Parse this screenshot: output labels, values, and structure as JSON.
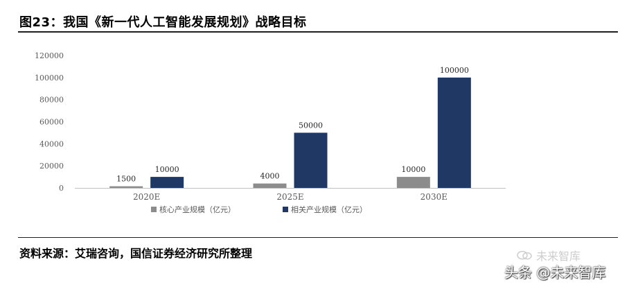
{
  "title": "图23：我国《新一代人工智能发展规划》战略目标",
  "source": "资料来源：艾瑞咨询，国信证券经济研究所整理",
  "watermark_top": "未来智库",
  "watermark_bottom": "头条 @未来智库",
  "colors": {
    "core": "#8c8c8c",
    "related": "#1f3864",
    "axis": "#bfbfbf",
    "text": "#595959"
  },
  "chart_data": {
    "type": "bar",
    "categories": [
      "2020E",
      "2025E",
      "2030E"
    ],
    "series": [
      {
        "name": "核心产业规模（亿元）",
        "values": [
          1500,
          4000,
          10000
        ],
        "data_labels": [
          "1500",
          "4000",
          "10000"
        ]
      },
      {
        "name": "相关产业规模（亿元）",
        "values": [
          10000,
          50000,
          100000
        ],
        "data_labels": [
          "10000",
          "50000",
          "100000"
        ]
      }
    ],
    "yticks": [
      "0",
      "20000",
      "40000",
      "60000",
      "80000",
      "100000",
      "120000"
    ],
    "ylim": [
      0,
      120000
    ],
    "grid": false,
    "legend": "bottom"
  }
}
